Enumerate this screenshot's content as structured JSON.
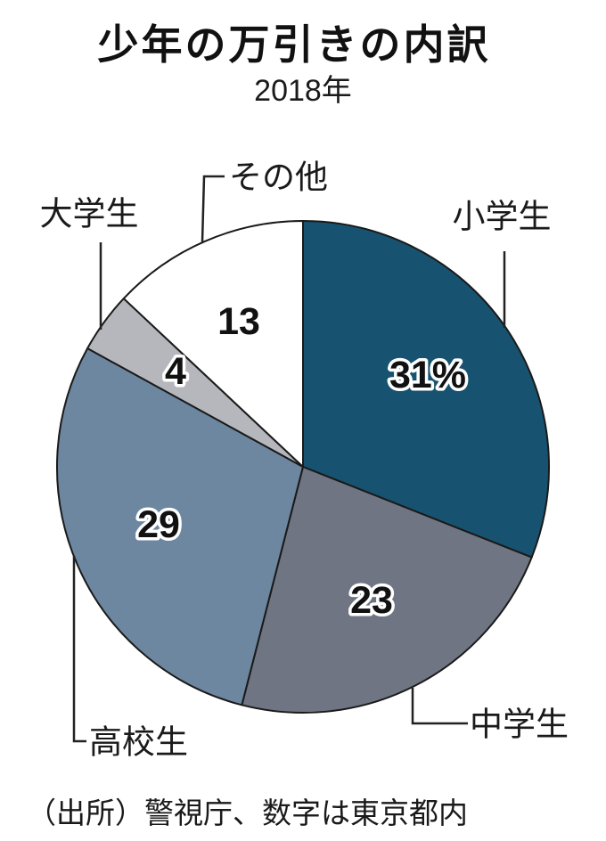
{
  "header": {
    "title": "少年の万引きの内訳",
    "subtitle": "2018年"
  },
  "footer": {
    "source": "（出所）警視庁、数字は東京都内"
  },
  "chart_data": {
    "type": "pie",
    "title": "少年の万引きの内訳",
    "subtitle": "2018年",
    "unit": "%",
    "total": 100,
    "start_angle_deg": 0,
    "direction": "clockwise",
    "legend": "none (outer leader-line labels)",
    "slices": [
      {
        "label": "小学生",
        "value": 31,
        "display": "31%",
        "color": "#175370"
      },
      {
        "label": "中学生",
        "value": 23,
        "display": "23",
        "color": "#6f7582"
      },
      {
        "label": "高校生",
        "value": 29,
        "display": "29",
        "color": "#6d87a0"
      },
      {
        "label": "大学生",
        "value": 4,
        "display": "4",
        "color": "#b5b7bc"
      },
      {
        "label": "その他",
        "value": 13,
        "display": "13",
        "color": "#ffffff"
      }
    ],
    "source": "（出所）警視庁、数字は東京都内",
    "layout": {
      "label_radius_fraction": 0.63,
      "stroke_color": "#1a1a1a",
      "stroke_width": 2
    }
  }
}
